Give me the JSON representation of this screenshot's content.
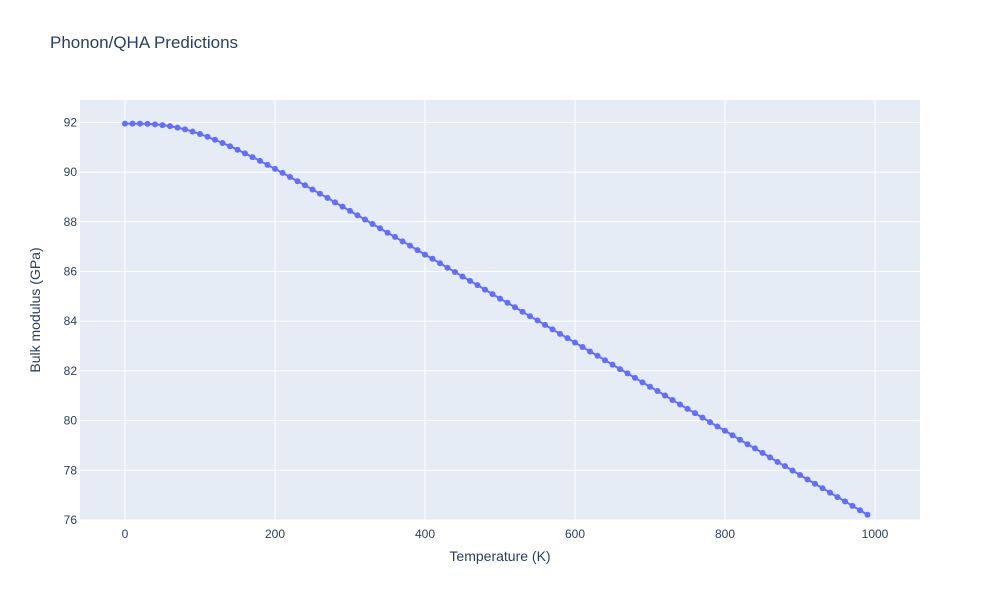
{
  "chart_data": {
    "type": "line",
    "title": "Phonon/QHA Predictions",
    "xlabel": "Temperature (K)",
    "ylabel": "Bulk modulus (GPa)",
    "xlim": [
      -60,
      1060
    ],
    "ylim": [
      76,
      92.9
    ],
    "x_ticks": [
      0,
      200,
      400,
      600,
      800,
      1000
    ],
    "y_ticks": [
      76,
      78,
      80,
      82,
      84,
      86,
      88,
      90,
      92
    ],
    "grid": true,
    "colors": {
      "plot_bg": "#e5ecf6",
      "grid": "#ffffff",
      "series": "#636efa",
      "text": "#2a3f5f"
    },
    "series": [
      {
        "x": [
          0,
          10,
          20,
          30,
          40,
          50,
          60,
          70,
          80,
          90,
          100,
          110,
          120,
          130,
          140,
          150,
          160,
          170,
          180,
          190,
          200,
          210,
          220,
          230,
          240,
          250,
          260,
          270,
          280,
          290,
          300,
          310,
          320,
          330,
          340,
          350,
          360,
          370,
          380,
          390,
          400,
          410,
          420,
          430,
          440,
          450,
          460,
          470,
          480,
          490,
          500,
          510,
          520,
          530,
          540,
          550,
          560,
          570,
          580,
          590,
          600,
          610,
          620,
          630,
          640,
          650,
          660,
          670,
          680,
          690,
          700,
          710,
          720,
          730,
          740,
          750,
          760,
          770,
          780,
          790,
          800,
          810,
          820,
          830,
          840,
          850,
          860,
          870,
          880,
          890,
          900,
          910,
          920,
          930,
          940,
          950,
          960,
          970,
          980,
          990
        ],
        "y": [
          91.95,
          91.95,
          91.95,
          91.94,
          91.92,
          91.89,
          91.85,
          91.79,
          91.72,
          91.63,
          91.53,
          91.42,
          91.3,
          91.17,
          91.04,
          90.9,
          90.75,
          90.6,
          90.45,
          90.29,
          90.13,
          89.97,
          89.8,
          89.63,
          89.47,
          89.3,
          89.13,
          88.96,
          88.78,
          88.61,
          88.44,
          88.26,
          88.09,
          87.91,
          87.74,
          87.56,
          87.39,
          87.21,
          87.04,
          86.86,
          86.68,
          86.51,
          86.33,
          86.15,
          85.98,
          85.8,
          85.62,
          85.45,
          85.27,
          85.09,
          84.91,
          84.74,
          84.56,
          84.38,
          84.2,
          84.03,
          83.85,
          83.67,
          83.49,
          83.32,
          83.14,
          82.96,
          82.78,
          82.61,
          82.43,
          82.25,
          82.07,
          81.9,
          81.72,
          81.54,
          81.36,
          81.19,
          81.01,
          80.83,
          80.65,
          80.47,
          80.3,
          80.12,
          79.94,
          79.76,
          79.59,
          79.41,
          79.23,
          79.05,
          78.88,
          78.7,
          78.52,
          78.34,
          78.17,
          77.99,
          77.81,
          77.63,
          77.46,
          77.28,
          77.1,
          76.92,
          76.75,
          76.57,
          76.39,
          76.21
        ]
      }
    ]
  }
}
